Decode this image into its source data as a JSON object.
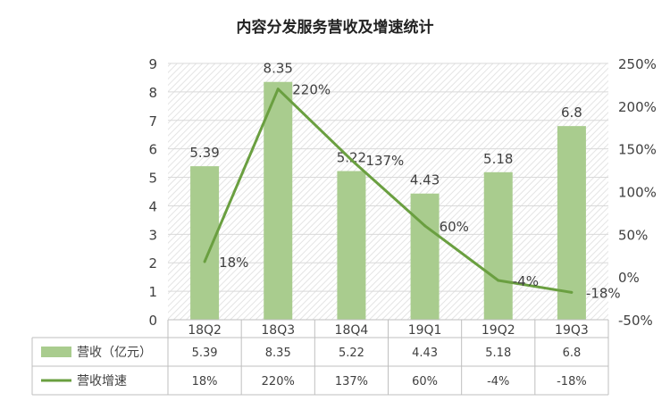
{
  "chart_data": {
    "type": "bar",
    "title": "内容分发服务营收及增速统计",
    "categories": [
      "18Q2",
      "18Q3",
      "18Q4",
      "19Q1",
      "19Q2",
      "19Q3"
    ],
    "series": [
      {
        "name": "营收（亿元）",
        "type": "bar",
        "axis": "left",
        "values": [
          5.39,
          8.35,
          5.22,
          4.43,
          5.18,
          6.8
        ],
        "labels": [
          "5.39",
          "8.35",
          "5.22",
          "4.43",
          "5.18",
          "6.8"
        ],
        "color": "#A9CC8E"
      },
      {
        "name": "营收增速",
        "type": "line",
        "axis": "right",
        "values": [
          18,
          220,
          137,
          60,
          -4,
          -18
        ],
        "labels": [
          "18%",
          "220%",
          "137%",
          "60%",
          "-4%",
          "-18%"
        ],
        "table_labels": [
          "18%",
          "220%",
          "137%",
          "60%",
          "-4%",
          "-18%"
        ],
        "color": "#6A9F40"
      }
    ],
    "y_left": {
      "range": [
        0,
        9
      ],
      "ticks": [
        "0",
        "1",
        "2",
        "3",
        "4",
        "5",
        "6",
        "7",
        "8",
        "9"
      ]
    },
    "y_right": {
      "range": [
        -50,
        250
      ],
      "ticks": [
        "-50%",
        "0%",
        "50%",
        "100%",
        "150%",
        "200%",
        "250%"
      ]
    },
    "grid": true,
    "data_table": true,
    "legend": "in data table"
  }
}
